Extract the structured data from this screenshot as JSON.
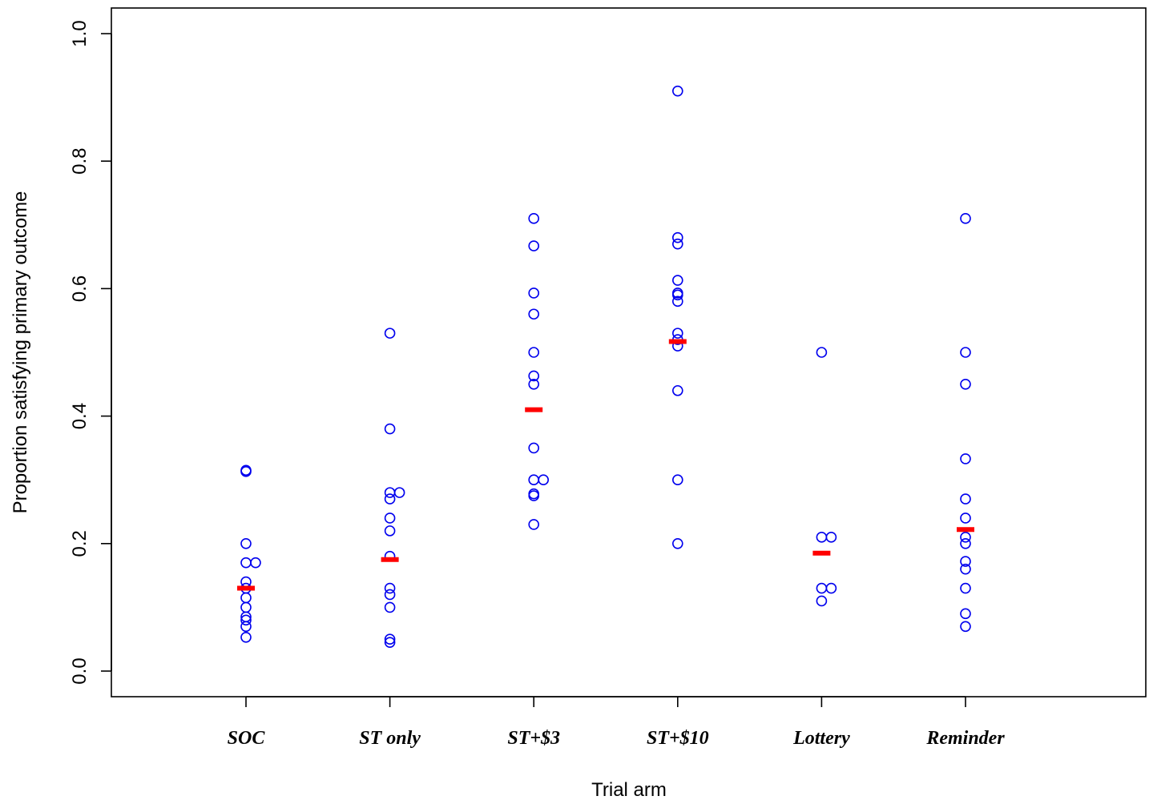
{
  "chart_data": {
    "type": "scatter",
    "title": "",
    "xlabel": "Trial arm",
    "ylabel": "Proportion satisfying primary outcome",
    "ylim": [
      0,
      1
    ],
    "yticks": [
      "0.0",
      "0.2",
      "0.4",
      "0.6",
      "0.8",
      "1.0"
    ],
    "categories": [
      "SOC",
      "ST only",
      "ST+$3",
      "ST+$10",
      "Lottery",
      "Reminder"
    ],
    "grid": false,
    "legend": "none",
    "colors": {
      "points": "#0000ee",
      "means": "#ff0000"
    },
    "series": [
      {
        "category": "SOC",
        "mean": 0.13,
        "points": [
          {
            "y": 0.315,
            "j": 0
          },
          {
            "y": 0.313,
            "j": 0
          },
          {
            "y": 0.2,
            "j": 0
          },
          {
            "y": 0.17,
            "j": 0
          },
          {
            "y": 0.17,
            "j": 1
          },
          {
            "y": 0.14,
            "j": 0
          },
          {
            "y": 0.13,
            "j": 0
          },
          {
            "y": 0.115,
            "j": 0
          },
          {
            "y": 0.1,
            "j": 0
          },
          {
            "y": 0.085,
            "j": 0
          },
          {
            "y": 0.08,
            "j": 0
          },
          {
            "y": 0.07,
            "j": 0
          },
          {
            "y": 0.053,
            "j": 0
          }
        ]
      },
      {
        "category": "ST only",
        "mean": 0.175,
        "points": [
          {
            "y": 0.53,
            "j": 0
          },
          {
            "y": 0.38,
            "j": 0
          },
          {
            "y": 0.28,
            "j": 0
          },
          {
            "y": 0.28,
            "j": 1
          },
          {
            "y": 0.27,
            "j": 0
          },
          {
            "y": 0.24,
            "j": 0
          },
          {
            "y": 0.22,
            "j": 0
          },
          {
            "y": 0.18,
            "j": 0
          },
          {
            "y": 0.13,
            "j": 0
          },
          {
            "y": 0.12,
            "j": 0
          },
          {
            "y": 0.1,
            "j": 0
          },
          {
            "y": 0.05,
            "j": 0
          },
          {
            "y": 0.045,
            "j": 0
          }
        ]
      },
      {
        "category": "ST+$3",
        "mean": 0.41,
        "points": [
          {
            "y": 0.71,
            "j": 0
          },
          {
            "y": 0.667,
            "j": 0
          },
          {
            "y": 0.593,
            "j": 0
          },
          {
            "y": 0.56,
            "j": 0
          },
          {
            "y": 0.5,
            "j": 0
          },
          {
            "y": 0.463,
            "j": 0
          },
          {
            "y": 0.45,
            "j": 0
          },
          {
            "y": 0.35,
            "j": 0
          },
          {
            "y": 0.3,
            "j": 0
          },
          {
            "y": 0.3,
            "j": 1
          },
          {
            "y": 0.278,
            "j": 0
          },
          {
            "y": 0.275,
            "j": 0
          },
          {
            "y": 0.23,
            "j": 0
          }
        ]
      },
      {
        "category": "ST+$10",
        "mean": 0.517,
        "points": [
          {
            "y": 0.91,
            "j": 0
          },
          {
            "y": 0.68,
            "j": 0
          },
          {
            "y": 0.67,
            "j": 0
          },
          {
            "y": 0.613,
            "j": 0
          },
          {
            "y": 0.593,
            "j": 0
          },
          {
            "y": 0.59,
            "j": 0
          },
          {
            "y": 0.58,
            "j": 0
          },
          {
            "y": 0.53,
            "j": 0
          },
          {
            "y": 0.52,
            "j": 0
          },
          {
            "y": 0.51,
            "j": 0
          },
          {
            "y": 0.44,
            "j": 0
          },
          {
            "y": 0.3,
            "j": 0
          },
          {
            "y": 0.2,
            "j": 0
          }
        ]
      },
      {
        "category": "Lottery",
        "mean": 0.185,
        "points": [
          {
            "y": 0.5,
            "j": 0
          },
          {
            "y": 0.21,
            "j": 0
          },
          {
            "y": 0.21,
            "j": 1
          },
          {
            "y": 0.13,
            "j": 0
          },
          {
            "y": 0.13,
            "j": 1
          },
          {
            "y": 0.11,
            "j": 0
          }
        ]
      },
      {
        "category": "Reminder",
        "mean": 0.222,
        "points": [
          {
            "y": 0.71,
            "j": 0
          },
          {
            "y": 0.5,
            "j": 0
          },
          {
            "y": 0.45,
            "j": 0
          },
          {
            "y": 0.333,
            "j": 0
          },
          {
            "y": 0.27,
            "j": 0
          },
          {
            "y": 0.24,
            "j": 0
          },
          {
            "y": 0.21,
            "j": 0
          },
          {
            "y": 0.2,
            "j": 0
          },
          {
            "y": 0.172,
            "j": 0
          },
          {
            "y": 0.16,
            "j": 0
          },
          {
            "y": 0.13,
            "j": 0
          },
          {
            "y": 0.09,
            "j": 0
          },
          {
            "y": 0.07,
            "j": 0
          }
        ]
      }
    ]
  }
}
